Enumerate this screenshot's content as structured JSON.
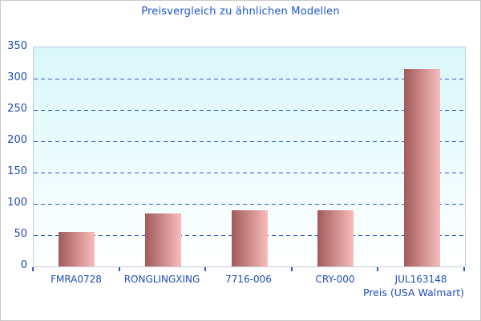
{
  "chart_data": {
    "type": "bar",
    "title": "Preisvergleich zu ähnlichen Modellen",
    "categories": [
      "FMRA0728",
      "RONGLINGXING",
      "7716-006",
      "CRY-000",
      "JUL163148"
    ],
    "values": [
      55,
      85,
      90,
      90,
      315
    ],
    "xlabel": "Preis (USA Walmart)",
    "ylabel": "",
    "ylim": [
      0,
      350
    ],
    "ytick_step": 50,
    "yticks": [
      0,
      50,
      100,
      150,
      200,
      250,
      300,
      350
    ],
    "grid": "horizontal-dashed",
    "legend": "none"
  },
  "colors": {
    "title_text": "#1b55cb",
    "axis_label_text": "#1e4db8",
    "grid_line": "#3059c6",
    "tick_mark": "#3059c6",
    "plot_border": "#c2cedf",
    "plot_bg_top": "#d9f7fa",
    "plot_bg_bottom": "#ffffff",
    "bar_gradient_left": "#a25a5a",
    "bar_gradient_mid": "#d29090",
    "bar_gradient_right": "#f8bcbc",
    "frame_border": "#c9c9c9"
  }
}
